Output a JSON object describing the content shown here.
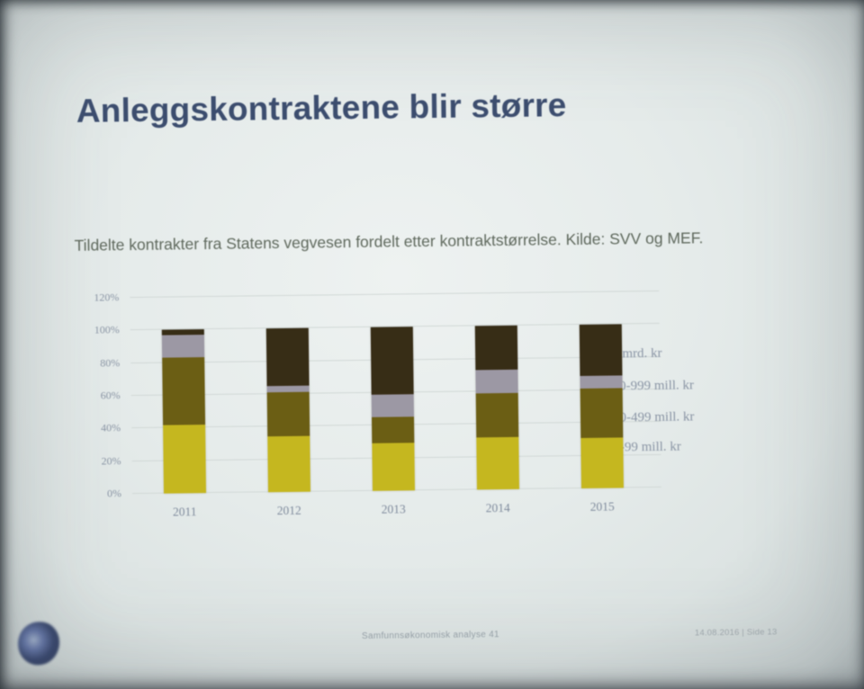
{
  "slide": {
    "title": "Anleggskontraktene blir større",
    "subtitle": "Tildelte kontrakter fra Statens vegvesen fordelt etter kontraktstørrelse. Kilde: SVV og MEF.",
    "footer": {
      "center": "Samfunnsøkonomisk analyse 41",
      "right": "14.08.2016 | Side 13",
      "logo": "samfunnsokonomisk-analyse-logo"
    }
  },
  "chart_data": {
    "type": "bar",
    "stacked": true,
    "title": "Tildelte kontrakter fra Statens vegvesen fordelt etter kontraktstørrelse",
    "categories": [
      "2011",
      "2012",
      "2013",
      "2014",
      "2015"
    ],
    "series": [
      {
        "name": "0-99 mill. kr",
        "color": "#c6b81d",
        "values": [
          42,
          34,
          29,
          32,
          31
        ]
      },
      {
        "name": "00-499 mill. kr",
        "color": "#6b5d12",
        "values": [
          41,
          27,
          16,
          27,
          30
        ]
      },
      {
        "name": "00-999 mill. kr",
        "color": "#9d98a5",
        "values": [
          14,
          4,
          14,
          14,
          8
        ]
      },
      {
        "name": "1 mrd. kr",
        "color": "#362b14",
        "values": [
          3,
          35,
          41,
          27,
          31
        ]
      }
    ],
    "legend_visible_labels": [
      "1 mrd. kr",
      "00-999 mill. kr",
      "00-499 mill. kr",
      "0-99 mill. kr"
    ],
    "legend_position": "right",
    "xlabel": "",
    "ylabel": "",
    "unit": "%",
    "ylim": [
      0,
      120
    ],
    "y_ticks": [
      "0%",
      "20%",
      "40%",
      "60%",
      "80%",
      "100%",
      "120%"
    ],
    "grid": true
  }
}
